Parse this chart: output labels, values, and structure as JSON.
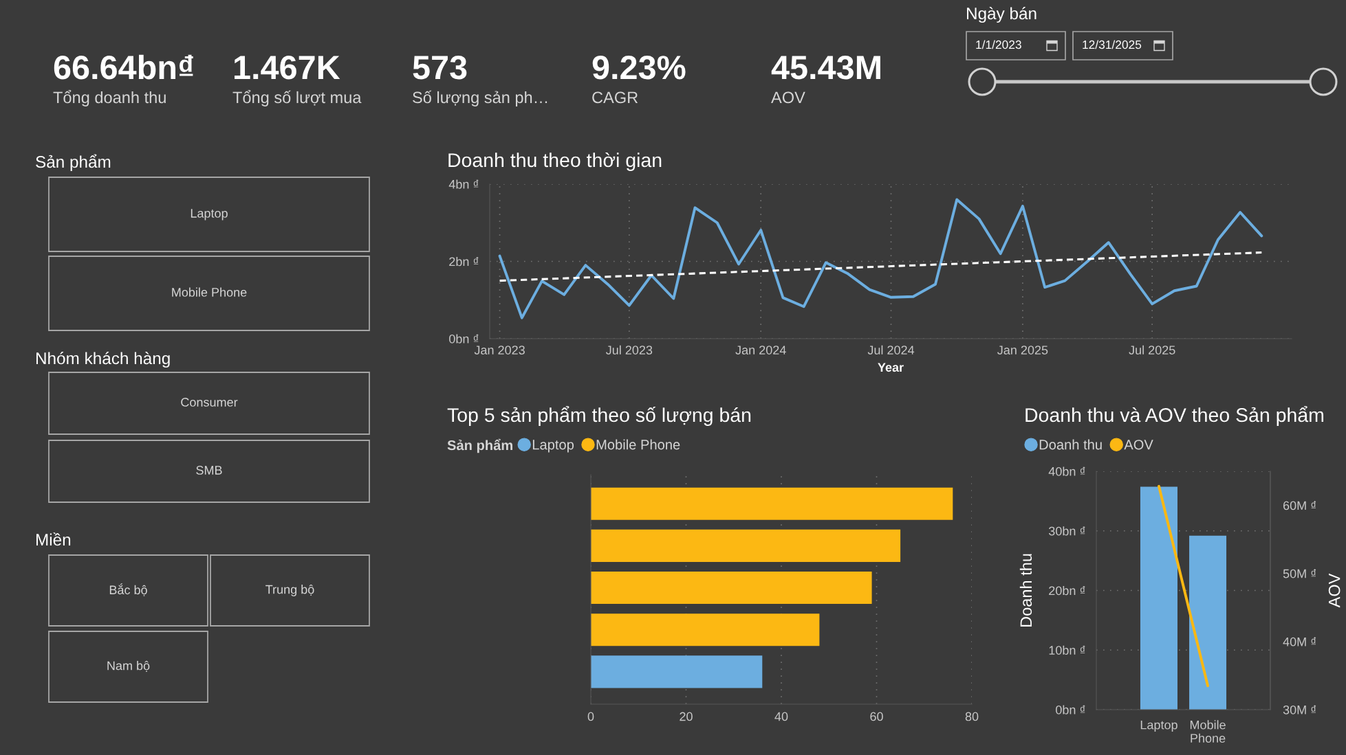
{
  "chart_data": [
    {
      "type": "other",
      "annotations": [
        "66.64bn₫",
        "Tổng doanh thu",
        "1.467K",
        "Tổng số lượt mua",
        "573",
        "Số lượng sản ph…",
        "9.23%",
        "CAGR",
        "45.43M",
        "AOV"
      ]
    },
    {
      "type": "other",
      "title": "Ngày bán",
      "annotations": [
        "1/1/2023",
        "12/31/2025"
      ]
    },
    {
      "type": "other",
      "title": "Sản phẩm",
      "annotations": [
        "Laptop",
        "Mobile Phone"
      ]
    },
    {
      "type": "other",
      "title": "Nhóm khách hàng",
      "annotations": [
        "Consumer",
        "SMB"
      ]
    },
    {
      "type": "other",
      "title": "Miền",
      "annotations": [
        "Bắc bộ",
        "Trung bộ",
        "Nam bộ"
      ]
    },
    {
      "type": "line",
      "title": "Doanh thu theo thời gian",
      "xlabel": "Year",
      "x": [
        "2023-01",
        "2023-02",
        "2023-03",
        "2023-04",
        "2023-05",
        "2023-06",
        "2023-07",
        "2023-08",
        "2023-09",
        "2023-10",
        "2023-11",
        "2023-12",
        "2024-01",
        "2024-02",
        "2024-03",
        "2024-04",
        "2024-05",
        "2024-06",
        "2024-07",
        "2024-08",
        "2024-09",
        "2024-10",
        "2024-11",
        "2024-12",
        "2025-01",
        "2025-02",
        "2025-03",
        "2025-04",
        "2025-05",
        "2025-06",
        "2025-07",
        "2025-08",
        "2025-09",
        "2025-10",
        "2025-11",
        "2025-12"
      ],
      "series": [
        {
          "color": "#6caee0",
          "values": [
            2.14,
            0.54,
            1.49,
            1.14,
            1.9,
            1.41,
            0.86,
            1.64,
            1.04,
            3.39,
            3.0,
            1.93,
            2.81,
            1.06,
            0.83,
            1.97,
            1.69,
            1.27,
            1.07,
            1.09,
            1.41,
            3.6,
            3.1,
            2.2,
            3.43,
            1.33,
            1.5,
            1.99,
            2.49,
            1.66,
            0.9,
            1.24,
            1.36,
            2.56,
            3.27,
            2.66
          ]
        },
        {
          "type": "line",
          "x": [
            "2023-01",
            "2025-12"
          ],
          "values": [
            1.5,
            2.23
          ],
          "color": "#ffffff",
          "line_style": "dashed"
        }
      ],
      "xlim": [
        "2022-12-18",
        "2026-01-12"
      ],
      "xticks": [
        {
          "value": "2023-01",
          "label": "Jan 2023"
        },
        {
          "value": "2023-07",
          "label": "Jul 2023"
        },
        {
          "value": "2024-01",
          "label": "Jan 2024"
        },
        {
          "value": "2024-07",
          "label": "Jul 2024"
        },
        {
          "value": "2025-01",
          "label": "Jan 2025"
        },
        {
          "value": "2025-07",
          "label": "Jul 2025"
        }
      ],
      "ylim": [
        0,
        4
      ],
      "yticks": [
        {
          "value": 0,
          "label": "0bn ₫"
        },
        {
          "value": 2,
          "label": "2bn ₫"
        },
        {
          "value": 4,
          "label": "4bn ₫"
        }
      ],
      "grid": true
    },
    {
      "type": "bar",
      "orientation": "horizontal",
      "title": "Top 5 sản phẩm theo số lượng bán",
      "legend_title": "Sản phẩm",
      "categories": [
        null,
        null,
        null,
        null,
        null
      ],
      "series": [
        {
          "name": "Laptop",
          "color": "#6caee0",
          "values": [
            null,
            null,
            null,
            null,
            36
          ]
        },
        {
          "name": "Mobile Phone",
          "color": "#fcb813",
          "values": [
            76,
            65,
            59,
            48,
            null
          ]
        }
      ],
      "xlim": [
        0,
        80
      ],
      "xticks": [
        0,
        20,
        40,
        60,
        80
      ],
      "grid": "x",
      "legend": "top left"
    },
    {
      "type": "bar",
      "title": "Doanh thu và AOV theo Sản phẩm",
      "categories": [
        "Laptop",
        "Mobile Phone"
      ],
      "series": [
        {
          "name": "Doanh thu",
          "color": "#6caee0",
          "values": [
            37.4,
            29.2
          ]
        },
        {
          "name": "AOV",
          "type": "line",
          "axis": "y2",
          "color": "#fcb813",
          "values": [
            62.8,
            33.5
          ]
        }
      ],
      "ylabel": "Doanh thu",
      "y2label": "AOV",
      "ylim": [
        0,
        40
      ],
      "yticks": [
        {
          "value": 0,
          "label": "0bn ₫"
        },
        {
          "value": 10,
          "label": "10bn ₫"
        },
        {
          "value": 20,
          "label": "20bn ₫"
        },
        {
          "value": 30,
          "label": "30bn ₫"
        },
        {
          "value": 40,
          "label": "40bn ₫"
        }
      ],
      "y2lim": [
        30,
        65
      ],
      "y2ticks": [
        {
          "value": 30,
          "label": "30M ₫"
        },
        {
          "value": 40,
          "label": "40M ₫"
        },
        {
          "value": 50,
          "label": "50M ₫"
        },
        {
          "value": 60,
          "label": "60M ₫"
        }
      ],
      "grid": "y",
      "legend": "top left"
    }
  ]
}
